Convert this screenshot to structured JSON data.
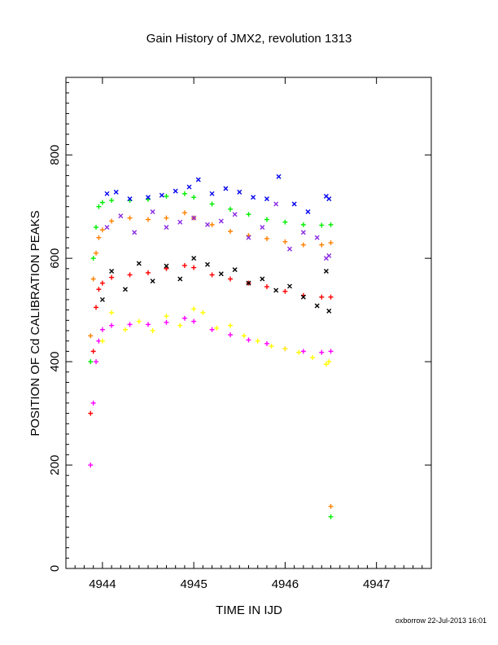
{
  "chart_data": {
    "type": "scatter",
    "title": "Gain History of JMX2, revolution 1313",
    "xlabel": "TIME IN IJD",
    "ylabel": "POSITION OF Cd CALIBRATION PEAKS",
    "xlim": [
      4943.6,
      4947.6
    ],
    "ylim": [
      0,
      950
    ],
    "xticks": [
      4944,
      4945,
      4946,
      4947
    ],
    "yticks": [
      0,
      200,
      400,
      600,
      800
    ],
    "grid": false,
    "legend": "none",
    "credit": "oxborrow 22-Jul-2013 16:01",
    "series": [
      {
        "color": "#00ee00",
        "marker": "plus",
        "x": [
          4943.87,
          4943.9,
          4943.93,
          4943.96,
          4944.0,
          4944.1,
          4944.3,
          4944.5,
          4944.7,
          4944.9,
          4945.0,
          4945.2,
          4945.4,
          4945.6,
          4945.8,
          4946.0,
          4946.2,
          4946.4,
          4946.5
        ],
        "values": [
          400,
          600,
          660,
          700,
          708,
          712,
          712,
          714,
          720,
          725,
          718,
          705,
          695,
          685,
          675,
          670,
          665,
          664,
          665
        ]
      },
      {
        "color": "#ff8000",
        "marker": "plus",
        "x": [
          4943.87,
          4943.9,
          4943.93,
          4943.96,
          4944.0,
          4944.1,
          4944.3,
          4944.5,
          4944.7,
          4944.9,
          4945.0,
          4945.2,
          4945.4,
          4945.6,
          4945.8,
          4946.0,
          4946.2,
          4946.4,
          4946.5
        ],
        "values": [
          450,
          560,
          610,
          640,
          655,
          672,
          678,
          675,
          678,
          688,
          678,
          665,
          652,
          644,
          638,
          632,
          626,
          626,
          630
        ]
      },
      {
        "color": "#ff0000",
        "marker": "plus",
        "x": [
          4943.87,
          4943.9,
          4943.93,
          4943.96,
          4944.0,
          4944.1,
          4944.3,
          4944.5,
          4944.7,
          4944.9,
          4945.0,
          4945.2,
          4945.4,
          4945.6,
          4945.8,
          4946.0,
          4946.2,
          4946.4,
          4946.5
        ],
        "values": [
          300,
          420,
          505,
          540,
          552,
          563,
          568,
          572,
          580,
          586,
          582,
          568,
          560,
          552,
          545,
          536,
          528,
          525,
          525
        ]
      },
      {
        "color": "#ff00ff",
        "marker": "plus",
        "x": [
          4943.87,
          4943.9,
          4943.93,
          4943.96,
          4944.0,
          4944.1,
          4944.3,
          4944.5,
          4944.7,
          4944.9,
          4945.0,
          4945.2,
          4945.4,
          4945.6,
          4945.8,
          4946.0,
          4946.2,
          4946.4,
          4946.5
        ],
        "values": [
          200,
          320,
          400,
          440,
          462,
          470,
          472,
          472,
          476,
          484,
          478,
          462,
          452,
          442,
          435,
          425,
          420,
          418,
          420
        ]
      },
      {
        "color": "#0000ee",
        "marker": "x",
        "x": [
          4944.05,
          4944.15,
          4944.3,
          4944.5,
          4944.65,
          4944.8,
          4944.95,
          4945.05,
          4945.2,
          4945.35,
          4945.5,
          4945.65,
          4945.8,
          4945.93,
          4946.1,
          4946.25,
          4946.45,
          4946.48
        ],
        "values": [
          725,
          728,
          715,
          718,
          722,
          730,
          738,
          752,
          725,
          735,
          728,
          718,
          715,
          758,
          705,
          690,
          720,
          715
        ]
      },
      {
        "color": "#8a2be2",
        "marker": "x",
        "x": [
          4944.05,
          4944.2,
          4944.35,
          4944.55,
          4944.7,
          4944.85,
          4945.0,
          4945.15,
          4945.3,
          4945.45,
          4945.6,
          4945.75,
          4945.9,
          4946.05,
          4946.2,
          4946.35,
          4946.45,
          4946.48
        ],
        "values": [
          660,
          682,
          650,
          690,
          660,
          670,
          678,
          665,
          672,
          685,
          640,
          660,
          705,
          618,
          650,
          640,
          600,
          605
        ]
      },
      {
        "color": "#000000",
        "marker": "x",
        "x": [
          4944.0,
          4944.1,
          4944.25,
          4944.4,
          4944.55,
          4944.7,
          4944.85,
          4945.0,
          4945.15,
          4945.3,
          4945.45,
          4945.6,
          4945.75,
          4945.9,
          4946.05,
          4946.2,
          4946.35,
          4946.45,
          4946.48
        ],
        "values": [
          520,
          575,
          540,
          590,
          556,
          585,
          560,
          600,
          588,
          570,
          578,
          552,
          560,
          538,
          546,
          525,
          508,
          575,
          498
        ]
      },
      {
        "color": "#ffff00",
        "marker": "plus",
        "x": [
          4944.0,
          4944.1,
          4944.25,
          4944.4,
          4944.55,
          4944.7,
          4944.85,
          4945.0,
          4945.1,
          4945.25,
          4945.4,
          4945.55,
          4945.7,
          4945.85,
          4946.0,
          4946.15,
          4946.3,
          4946.45,
          4946.48
        ],
        "values": [
          440,
          495,
          462,
          478,
          460,
          488,
          470,
          502,
          495,
          465,
          470,
          450,
          440,
          430,
          425,
          418,
          408,
          395,
          400
        ]
      },
      {
        "color": "#ff8000",
        "marker": "plus",
        "x": [
          4946.5
        ],
        "values": [
          120
        ]
      },
      {
        "color": "#00ee00",
        "marker": "plus",
        "x": [
          4946.5
        ],
        "values": [
          100
        ]
      }
    ]
  }
}
